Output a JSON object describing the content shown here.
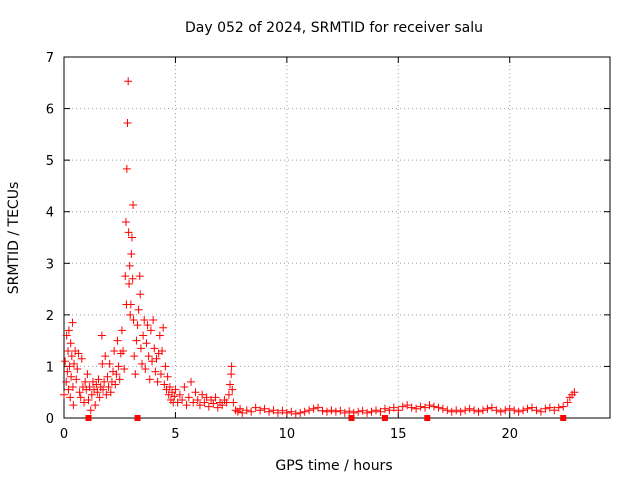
{
  "chart_data": {
    "type": "scatter",
    "title": "Day 052 of 2024, SRMTID for receiver salu",
    "xlabel": "GPS time / hours",
    "ylabel": "SRMTID / TECUs",
    "xlim": [
      0,
      24.5
    ],
    "ylim": [
      0,
      7
    ],
    "xticks": [
      0,
      5,
      10,
      15,
      20
    ],
    "yticks": [
      0,
      1,
      2,
      3,
      4,
      5,
      6,
      7
    ],
    "grid": true,
    "marker": "plus",
    "series": [
      {
        "name": "SRMTID",
        "color": "#ff0000",
        "points": [
          [
            0.0,
            0.45
          ],
          [
            0.05,
            1.1
          ],
          [
            0.1,
            0.7
          ],
          [
            0.12,
            1.6
          ],
          [
            0.15,
            0.9
          ],
          [
            0.18,
            1.3
          ],
          [
            0.2,
            0.55
          ],
          [
            0.22,
            1.7
          ],
          [
            0.25,
            1.0
          ],
          [
            0.28,
            0.4
          ],
          [
            0.3,
            1.45
          ],
          [
            0.32,
            0.8
          ],
          [
            0.35,
            1.2
          ],
          [
            0.38,
            1.85
          ],
          [
            0.4,
            0.6
          ],
          [
            0.42,
            0.25
          ],
          [
            0.45,
            1.05
          ],
          [
            0.5,
            1.3
          ],
          [
            0.55,
            0.75
          ],
          [
            0.6,
            0.95
          ],
          [
            0.65,
            1.25
          ],
          [
            0.7,
            0.5
          ],
          [
            0.75,
            0.4
          ],
          [
            0.8,
            1.15
          ],
          [
            0.85,
            0.6
          ],
          [
            0.9,
            0.3
          ],
          [
            0.95,
            0.7
          ],
          [
            1.0,
            0.55
          ],
          [
            1.05,
            0.85
          ],
          [
            1.1,
            0.35
          ],
          [
            1.15,
            0.6
          ],
          [
            1.2,
            0.15
          ],
          [
            1.25,
            0.45
          ],
          [
            1.3,
            0.7
          ],
          [
            1.35,
            0.55
          ],
          [
            1.4,
            0.25
          ],
          [
            1.45,
            0.65
          ],
          [
            1.5,
            0.5
          ],
          [
            1.55,
            0.75
          ],
          [
            1.6,
            0.4
          ],
          [
            1.65,
            0.6
          ],
          [
            1.7,
            1.6
          ],
          [
            1.72,
            1.05
          ],
          [
            1.75,
            0.55
          ],
          [
            1.8,
            0.7
          ],
          [
            1.85,
            1.2
          ],
          [
            1.9,
            0.45
          ],
          [
            1.95,
            0.8
          ],
          [
            2.0,
            0.6
          ],
          [
            2.05,
            1.05
          ],
          [
            2.1,
            0.5
          ],
          [
            2.15,
            0.7
          ],
          [
            2.2,
            0.9
          ],
          [
            2.25,
            1.3
          ],
          [
            2.3,
            0.65
          ],
          [
            2.35,
            0.85
          ],
          [
            2.4,
            1.5
          ],
          [
            2.45,
            1.0
          ],
          [
            2.5,
            0.75
          ],
          [
            2.55,
            1.25
          ],
          [
            2.6,
            1.7
          ],
          [
            2.65,
            1.3
          ],
          [
            2.7,
            0.95
          ],
          [
            2.75,
            2.75
          ],
          [
            2.78,
            3.8
          ],
          [
            2.8,
            2.2
          ],
          [
            2.82,
            4.83
          ],
          [
            2.85,
            5.72
          ],
          [
            2.88,
            6.53
          ],
          [
            2.9,
            3.6
          ],
          [
            2.92,
            2.6
          ],
          [
            2.95,
            2.95
          ],
          [
            2.97,
            2.0
          ],
          [
            3.0,
            2.2
          ],
          [
            3.02,
            3.18
          ],
          [
            3.05,
            3.5
          ],
          [
            3.08,
            2.7
          ],
          [
            3.1,
            4.13
          ],
          [
            3.12,
            1.9
          ],
          [
            3.15,
            1.2
          ],
          [
            3.2,
            0.85
          ],
          [
            3.25,
            1.5
          ],
          [
            3.3,
            1.8
          ],
          [
            3.35,
            2.1
          ],
          [
            3.4,
            2.75
          ],
          [
            3.42,
            2.4
          ],
          [
            3.45,
            1.35
          ],
          [
            3.5,
            1.05
          ],
          [
            3.55,
            1.6
          ],
          [
            3.6,
            1.9
          ],
          [
            3.65,
            0.95
          ],
          [
            3.7,
            1.45
          ],
          [
            3.75,
            1.8
          ],
          [
            3.8,
            1.2
          ],
          [
            3.85,
            0.75
          ],
          [
            3.9,
            1.7
          ],
          [
            3.95,
            1.1
          ],
          [
            4.0,
            1.9
          ],
          [
            4.05,
            1.35
          ],
          [
            4.1,
            0.9
          ],
          [
            4.15,
            1.15
          ],
          [
            4.2,
            0.7
          ],
          [
            4.25,
            1.25
          ],
          [
            4.3,
            1.6
          ],
          [
            4.35,
            0.85
          ],
          [
            4.4,
            1.3
          ],
          [
            4.45,
            1.75
          ],
          [
            4.5,
            0.65
          ],
          [
            4.55,
            1.0
          ],
          [
            4.6,
            0.55
          ],
          [
            4.65,
            0.8
          ],
          [
            4.7,
            0.45
          ],
          [
            4.75,
            0.6
          ],
          [
            4.8,
            0.35
          ],
          [
            4.85,
            0.5
          ],
          [
            4.9,
            0.3
          ],
          [
            4.95,
            0.42
          ],
          [
            5.0,
            0.55
          ],
          [
            5.1,
            0.3
          ],
          [
            5.2,
            0.45
          ],
          [
            5.3,
            0.35
          ],
          [
            5.4,
            0.6
          ],
          [
            5.5,
            0.25
          ],
          [
            5.6,
            0.4
          ],
          [
            5.7,
            0.7
          ],
          [
            5.8,
            0.3
          ],
          [
            5.9,
            0.5
          ],
          [
            6.0,
            0.35
          ],
          [
            6.1,
            0.25
          ],
          [
            6.2,
            0.45
          ],
          [
            6.3,
            0.3
          ],
          [
            6.4,
            0.4
          ],
          [
            6.5,
            0.22
          ],
          [
            6.6,
            0.35
          ],
          [
            6.7,
            0.28
          ],
          [
            6.8,
            0.4
          ],
          [
            6.9,
            0.2
          ],
          [
            7.0,
            0.3
          ],
          [
            7.1,
            0.25
          ],
          [
            7.2,
            0.35
          ],
          [
            7.3,
            0.3
          ],
          [
            7.4,
            0.45
          ],
          [
            7.45,
            0.65
          ],
          [
            7.5,
            0.85
          ],
          [
            7.52,
            1.0
          ],
          [
            7.55,
            0.55
          ],
          [
            7.6,
            0.3
          ],
          [
            7.7,
            0.15
          ],
          [
            7.8,
            0.12
          ],
          [
            7.9,
            0.18
          ],
          [
            8.0,
            0.1
          ],
          [
            8.2,
            0.15
          ],
          [
            8.4,
            0.12
          ],
          [
            8.6,
            0.2
          ],
          [
            8.8,
            0.15
          ],
          [
            9.0,
            0.18
          ],
          [
            9.2,
            0.12
          ],
          [
            9.4,
            0.15
          ],
          [
            9.6,
            0.1
          ],
          [
            9.8,
            0.14
          ],
          [
            10.0,
            0.1
          ],
          [
            10.2,
            0.12
          ],
          [
            10.4,
            0.08
          ],
          [
            10.6,
            0.1
          ],
          [
            10.8,
            0.12
          ],
          [
            11.0,
            0.15
          ],
          [
            11.2,
            0.18
          ],
          [
            11.4,
            0.2
          ],
          [
            11.6,
            0.14
          ],
          [
            11.8,
            0.12
          ],
          [
            12.0,
            0.15
          ],
          [
            12.2,
            0.12
          ],
          [
            12.4,
            0.14
          ],
          [
            12.6,
            0.1
          ],
          [
            12.8,
            0.13
          ],
          [
            13.0,
            0.1
          ],
          [
            13.2,
            0.12
          ],
          [
            13.4,
            0.14
          ],
          [
            13.6,
            0.1
          ],
          [
            13.8,
            0.12
          ],
          [
            14.0,
            0.15
          ],
          [
            14.2,
            0.12
          ],
          [
            14.4,
            0.18
          ],
          [
            14.6,
            0.15
          ],
          [
            14.8,
            0.2
          ],
          [
            15.0,
            0.15
          ],
          [
            15.2,
            0.22
          ],
          [
            15.4,
            0.25
          ],
          [
            15.6,
            0.2
          ],
          [
            15.8,
            0.18
          ],
          [
            16.0,
            0.22
          ],
          [
            16.2,
            0.2
          ],
          [
            16.4,
            0.25
          ],
          [
            16.6,
            0.22
          ],
          [
            16.8,
            0.2
          ],
          [
            17.0,
            0.18
          ],
          [
            17.2,
            0.15
          ],
          [
            17.4,
            0.12
          ],
          [
            17.6,
            0.15
          ],
          [
            17.8,
            0.12
          ],
          [
            18.0,
            0.15
          ],
          [
            18.2,
            0.18
          ],
          [
            18.4,
            0.15
          ],
          [
            18.6,
            0.12
          ],
          [
            18.8,
            0.15
          ],
          [
            19.0,
            0.18
          ],
          [
            19.2,
            0.2
          ],
          [
            19.4,
            0.15
          ],
          [
            19.6,
            0.12
          ],
          [
            19.8,
            0.15
          ],
          [
            20.0,
            0.18
          ],
          [
            20.2,
            0.15
          ],
          [
            20.4,
            0.12
          ],
          [
            20.6,
            0.15
          ],
          [
            20.8,
            0.18
          ],
          [
            21.0,
            0.2
          ],
          [
            21.2,
            0.15
          ],
          [
            21.4,
            0.12
          ],
          [
            21.6,
            0.18
          ],
          [
            21.8,
            0.2
          ],
          [
            22.0,
            0.15
          ],
          [
            22.2,
            0.2
          ],
          [
            22.4,
            0.22
          ],
          [
            22.6,
            0.3
          ],
          [
            22.7,
            0.4
          ],
          [
            22.8,
            0.45
          ],
          [
            22.9,
            0.5
          ]
        ],
        "floor_points": [
          [
            1.1,
            0.0
          ],
          [
            3.3,
            0.0
          ],
          [
            12.9,
            0.0
          ],
          [
            14.4,
            0.0
          ],
          [
            16.3,
            0.0
          ],
          [
            22.4,
            0.0
          ]
        ]
      }
    ]
  }
}
